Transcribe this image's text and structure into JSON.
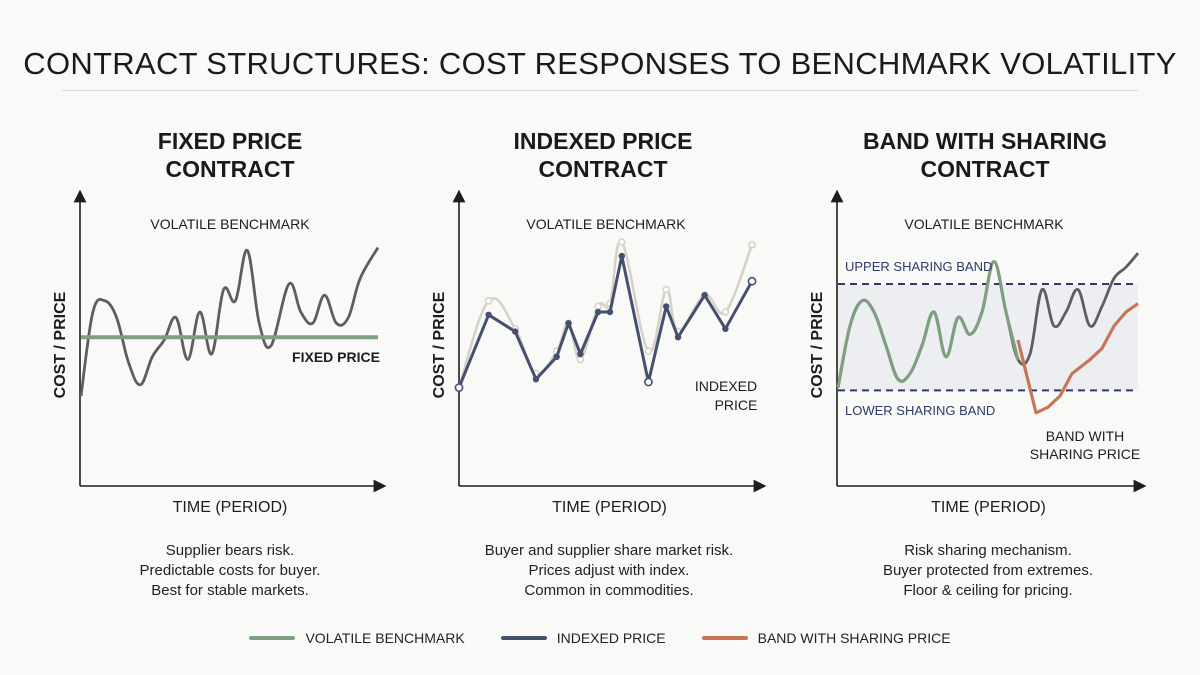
{
  "title": "CONTRACT STRUCTURES: COST RESPONSES TO BENCHMARK VOLATILITY",
  "colors": {
    "benchmark_grey": "#5e5e5e",
    "benchmark_light": "#d6d2c8",
    "benchmark_green": "#7f9f80",
    "indexed_navy": "#45506f",
    "band_orange": "#c87555",
    "band_line": "#2f3a66",
    "band_fill": "#eceef2"
  },
  "panels": [
    {
      "title_line1": "FIXED PRICE",
      "title_line2": "CONTRACT",
      "desc": [
        "Supplier bears risk.",
        "Predictable costs for buyer.",
        "Best for stable markets."
      ]
    },
    {
      "title_line1": "INDEXED PRICE",
      "title_line2": "CONTRACT",
      "desc": [
        "Buyer and supplier share market risk.",
        "Prices adjust with index.",
        "Common in commodities."
      ]
    },
    {
      "title_line1": "BAND WITH SHARING",
      "title_line2": "CONTRACT",
      "desc": [
        "Risk sharing mechanism.",
        "Buyer protected from extremes.",
        "Floor & ceiling for pricing."
      ]
    }
  ],
  "chart_data": [
    {
      "type": "line",
      "title": "FIXED PRICE CONTRACT",
      "xlabel": "TIME (PERIOD)",
      "ylabel": "COST / PRICE",
      "ylim": [
        0,
        100
      ],
      "annotations": [
        "VOLATILE BENCHMARK",
        "FIXED PRICE"
      ],
      "series": [
        {
          "name": "VOLATILE BENCHMARK",
          "x": [
            0,
            4,
            8,
            12,
            16,
            20,
            24,
            28,
            32,
            36,
            40,
            44,
            48,
            52,
            56,
            60,
            64,
            70,
            74,
            78,
            82,
            86,
            90,
            94,
            100
          ],
          "y": [
            30,
            60,
            64,
            58,
            42,
            34,
            44,
            50,
            58,
            43,
            60,
            45,
            68,
            64,
            82,
            56,
            48,
            70,
            60,
            56,
            66,
            56,
            58,
            72,
            83
          ]
        },
        {
          "name": "FIXED PRICE",
          "x": [
            0,
            100
          ],
          "y": [
            51,
            51
          ]
        }
      ]
    },
    {
      "type": "line",
      "title": "INDEXED PRICE CONTRACT",
      "xlabel": "TIME (PERIOD)",
      "ylabel": "COST / PRICE",
      "ylim": [
        0,
        100
      ],
      "annotations": [
        "VOLATILE BENCHMARK",
        "INDEXED PRICE"
      ],
      "series": [
        {
          "name": "VOLATILE BENCHMARK",
          "x": [
            0,
            10,
            19,
            26,
            33,
            37,
            41,
            47,
            51,
            55,
            64,
            70,
            74,
            83,
            90,
            99
          ],
          "y": [
            33,
            64,
            54,
            38,
            46,
            56,
            43,
            62,
            63,
            85,
            46,
            68,
            53,
            66,
            60,
            84
          ]
        },
        {
          "name": "INDEXED PRICE",
          "x": [
            0,
            10,
            19,
            26,
            33,
            37,
            41,
            47,
            51,
            55,
            64,
            70,
            74,
            83,
            90,
            99
          ],
          "y": [
            33,
            59,
            53,
            36,
            44,
            56,
            45,
            60,
            60,
            80,
            35,
            62,
            51,
            66,
            54,
            71
          ]
        }
      ]
    },
    {
      "type": "line",
      "title": "BAND WITH SHARING CONTRACT",
      "xlabel": "TIME (PERIOD)",
      "ylabel": "COST / PRICE",
      "ylim": [
        0,
        100
      ],
      "annotations": [
        "VOLATILE BENCHMARK",
        "UPPER SHARING BAND",
        "LOWER SHARING BAND",
        "BAND WITH SHARING PRICE"
      ],
      "band": {
        "upper": 70,
        "lower": 32
      },
      "series": [
        {
          "name": "VOLATILE BENCHMARK",
          "x": [
            0,
            4,
            8,
            12,
            16,
            20,
            24,
            28,
            32,
            36,
            40,
            44,
            48,
            52,
            56,
            60,
            64,
            68,
            72,
            76,
            80,
            84,
            88,
            92,
            96,
            100
          ],
          "y": [
            33,
            55,
            64,
            60,
            48,
            36,
            38,
            48,
            60,
            44,
            58,
            52,
            60,
            78,
            60,
            43,
            45,
            68,
            55,
            60,
            68,
            55,
            62,
            72,
            76,
            81
          ]
        },
        {
          "name": "BAND WITH SHARING PRICE",
          "x": [
            60,
            66,
            70,
            74,
            78,
            84,
            88,
            92,
            96,
            100
          ],
          "y": [
            50,
            24,
            26,
            30,
            38,
            43,
            47,
            55,
            60,
            63
          ]
        }
      ]
    }
  ],
  "legend": [
    {
      "label": "VOLATILE BENCHMARK",
      "color": "#7f9f80"
    },
    {
      "label": "INDEXED PRICE",
      "color": "#45506f"
    },
    {
      "label": "BAND WITH SHARING PRICE",
      "color": "#c87555"
    }
  ]
}
